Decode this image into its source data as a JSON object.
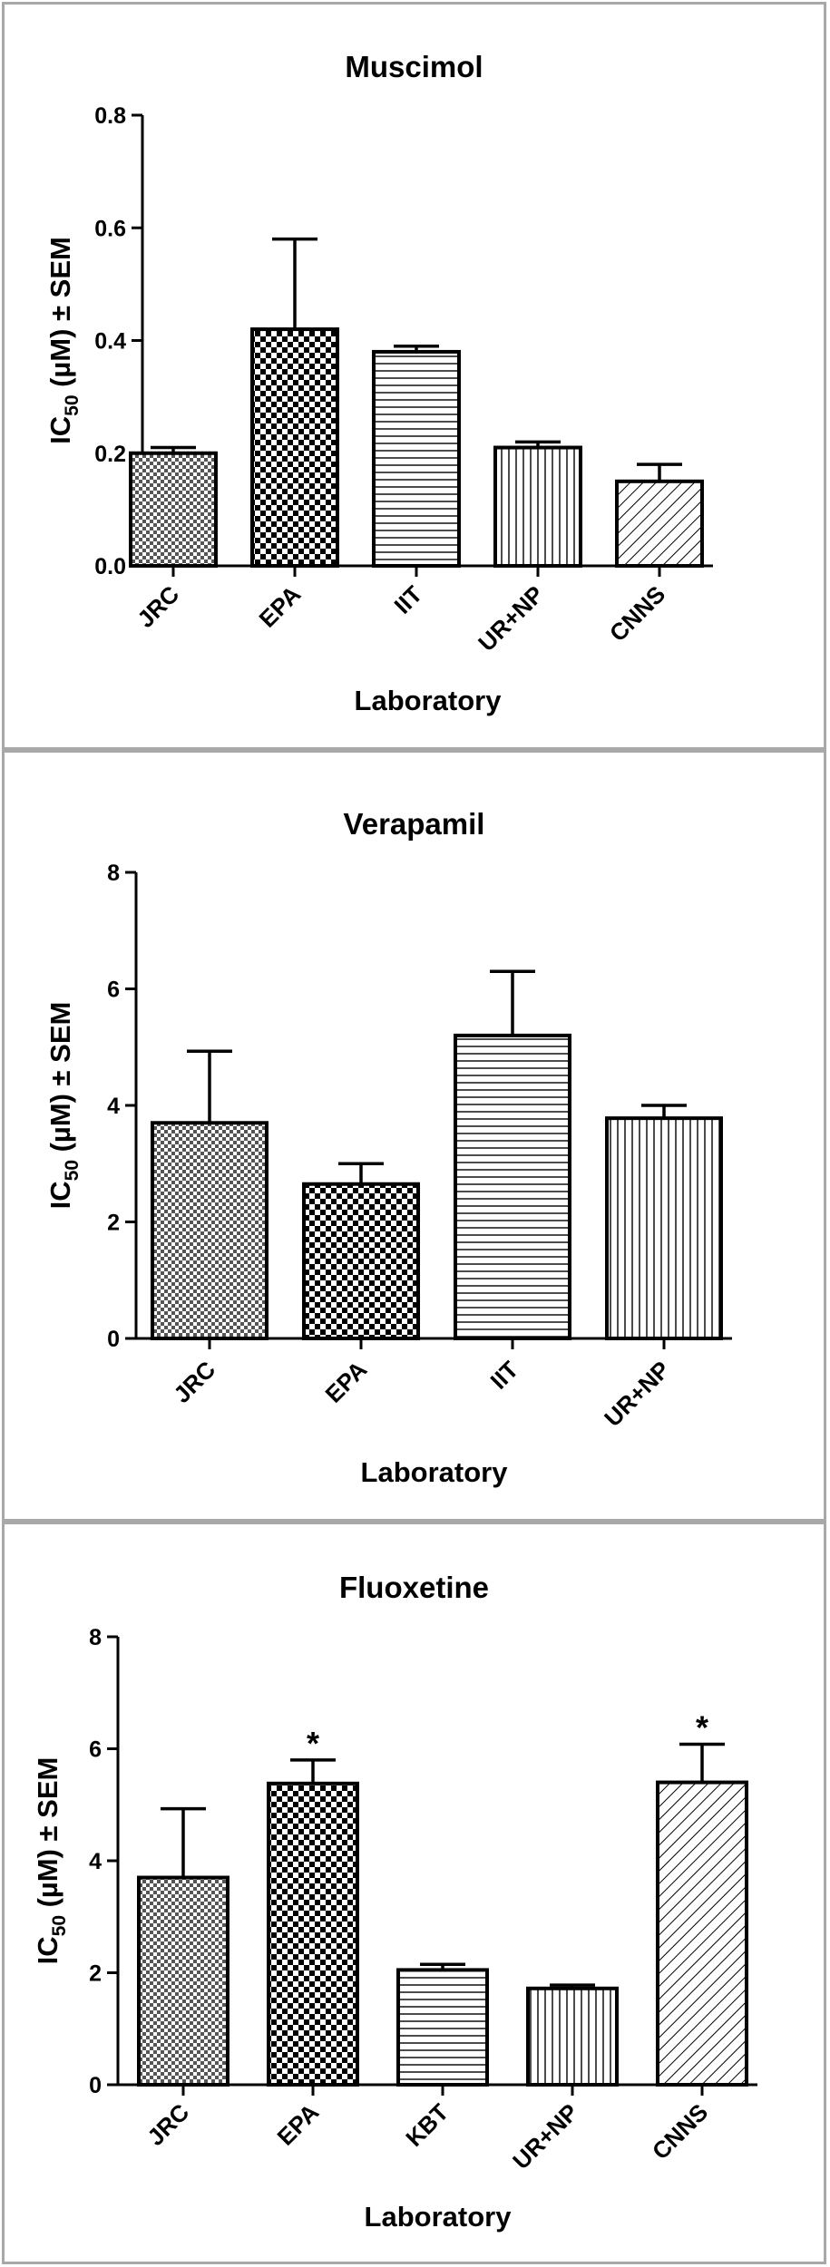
{
  "chart_data": [
    {
      "type": "bar",
      "title": "Muscimol",
      "xlabel": "Laboratory",
      "ylabel": {
        "main": "IC",
        "sub": "50",
        "rest": " (µM) ± SEM"
      },
      "ylim": [
        0,
        0.8
      ],
      "yticks": [
        "0.0",
        "0.2",
        "0.4",
        "0.6",
        "0.8"
      ],
      "categories": [
        "JRC",
        "EPA",
        "IIT",
        "UR+NP",
        "CNNS"
      ],
      "values": [
        0.2,
        0.42,
        0.38,
        0.21,
        0.15
      ],
      "errors": [
        0.01,
        0.16,
        0.01,
        0.01,
        0.03
      ],
      "patterns": [
        "fine-check",
        "check",
        "horizontal",
        "vertical",
        "diagonal"
      ],
      "annotations": [
        "",
        "",
        "",
        "",
        ""
      ]
    },
    {
      "type": "bar",
      "title": "Verapamil",
      "xlabel": "Laboratory",
      "ylabel": {
        "main": "IC",
        "sub": "50",
        "rest": " (µM) ± SEM"
      },
      "ylim": [
        0,
        8
      ],
      "yticks": [
        "0",
        "2",
        "4",
        "6",
        "8"
      ],
      "categories": [
        "JRC",
        "EPA",
        "IIT",
        "UR+NP"
      ],
      "values": [
        3.7,
        2.65,
        5.2,
        3.78
      ],
      "errors": [
        1.23,
        0.35,
        1.1,
        0.22
      ],
      "patterns": [
        "fine-check",
        "check",
        "horizontal",
        "vertical"
      ],
      "annotations": [
        "",
        "",
        "",
        ""
      ]
    },
    {
      "type": "bar",
      "title": "Fluoxetine",
      "xlabel": "Laboratory",
      "ylabel": {
        "main": "IC",
        "sub": "50",
        "rest": " (µM) ± SEM"
      },
      "ylim": [
        0,
        8
      ],
      "yticks": [
        "0",
        "2",
        "4",
        "6",
        "8"
      ],
      "categories": [
        "JRC",
        "EPA",
        "KBT",
        "UR+NP",
        "CNNS"
      ],
      "values": [
        3.7,
        5.38,
        2.05,
        1.72,
        5.4
      ],
      "errors": [
        1.23,
        0.42,
        0.1,
        0.06,
        0.68
      ],
      "patterns": [
        "fine-check",
        "check",
        "horizontal",
        "vertical",
        "diagonal"
      ],
      "annotations": [
        "",
        "*",
        "",
        "",
        "*"
      ]
    }
  ]
}
